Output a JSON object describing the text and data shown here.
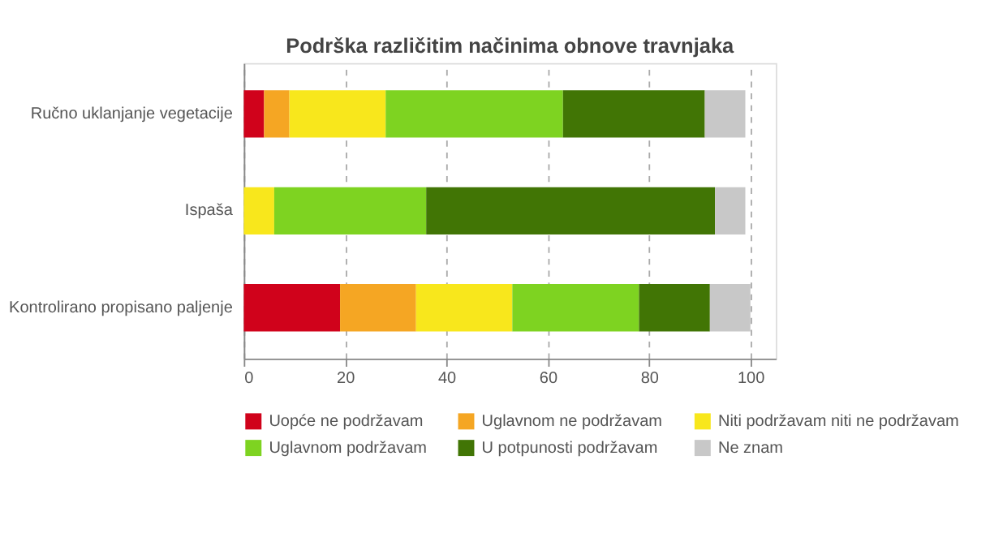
{
  "chart_data": {
    "type": "bar",
    "orientation": "horizontal",
    "stacked": true,
    "title": "Podrška različitim načinima obnove travnjaka",
    "categories": [
      "Ručno uklanjanje vegetacije",
      "Ispaša",
      "Kontrolirano propisano paljenje"
    ],
    "series": [
      {
        "name": "Uopće ne podržavam",
        "color": "#d0021b",
        "values": [
          4,
          0,
          19
        ]
      },
      {
        "name": "Uglavnom ne podržavam",
        "color": "#f5a623",
        "values": [
          5,
          0,
          15
        ]
      },
      {
        "name": "Niti podržavam niti ne podržavam",
        "color": "#f8e71c",
        "values": [
          19,
          6,
          19
        ]
      },
      {
        "name": "Uglavnom podržavam",
        "color": "#7ed321",
        "values": [
          35,
          30,
          25
        ]
      },
      {
        "name": "U potpunosti podržavam",
        "color": "#417505",
        "values": [
          28,
          57,
          14
        ]
      },
      {
        "name": "Ne znam",
        "color": "#c8c8c8",
        "values": [
          8,
          6,
          8
        ]
      }
    ],
    "xlim": [
      0,
      105
    ],
    "xticks": [
      0,
      20,
      40,
      60,
      80,
      100
    ],
    "grid": "x",
    "legend": "bottom"
  }
}
